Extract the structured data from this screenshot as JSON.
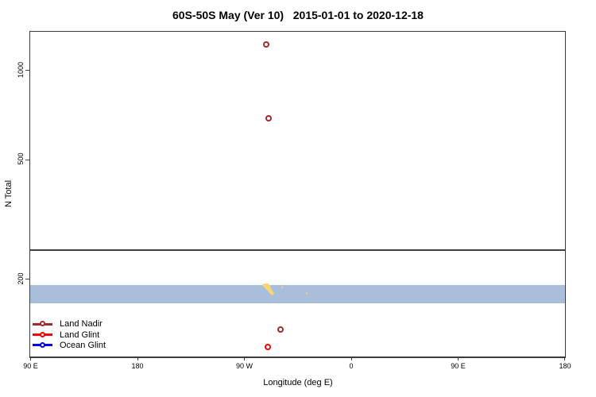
{
  "title": "60S-50S May (Ver 10)   2015-01-01 to 2020-12-18",
  "axes": {
    "y_label": "N Total",
    "x_label": "Longitude (deg E)",
    "y_tick_labels": [
      "1000",
      "500",
      "200"
    ],
    "x_tick_labels": [
      "90 E",
      "180",
      "90 W",
      "0",
      "90 E",
      "180"
    ]
  },
  "legend": {
    "items": [
      {
        "label": "Land Nadir",
        "color": "#a52a2a"
      },
      {
        "label": "Land Glint",
        "color": "#ff0000"
      },
      {
        "label": "Ocean Glint",
        "color": "#0000ff"
      }
    ]
  },
  "chart_data": {
    "type": "scatter",
    "title": "60S-50S May (Ver 10)  2015-01-01 to 2020-12-18",
    "xlabel": "Longitude (deg E)",
    "ylabel": "N Total",
    "y_scale": "log",
    "ylim": [
      110,
      1342
    ],
    "xlim_axis_deg": [
      90,
      540
    ],
    "x_tick_axis_deg": [
      90,
      180,
      270,
      360,
      450,
      540
    ],
    "x_tick_labels": [
      "90 E",
      "180",
      "90 W",
      "0",
      "90 E",
      "180"
    ],
    "y_ticks": [
      1000,
      500,
      200
    ],
    "grid": false,
    "legend_position": "bottom-left-inside",
    "series": [
      {
        "name": "Land Nadir",
        "color": "#a52a2a",
        "points": [
          {
            "lon_deg_e": -71,
            "n_total": 1210
          },
          {
            "lon_deg_e": -69,
            "n_total": 684
          },
          {
            "lon_deg_e": -59,
            "n_total": 135
          }
        ]
      },
      {
        "name": "Land Glint",
        "color": "#ff0000",
        "points": [
          {
            "lon_deg_e": -70,
            "n_total": 118
          }
        ]
      },
      {
        "name": "Ocean Glint",
        "color": "#0000ff",
        "points": []
      }
    ],
    "reference_line": {
      "n_total": 250,
      "color": "#404040"
    },
    "latitude_band_strip": {
      "n_from": 165,
      "n_to": 190,
      "ocean_color": "#a9bedb",
      "land_color": "#f6d573",
      "land_features": [
        {
          "name": "patagonia",
          "lon_from_deg_e": -74.5,
          "lon_to_deg_e": -64
        },
        {
          "name": "islands-east-of-patagonia",
          "lon_from_deg_e": -59,
          "lon_to_deg_e": -57
        },
        {
          "name": "south-georgia",
          "lon_from_deg_e": -38,
          "lon_to_deg_e": -36.5
        }
      ]
    }
  }
}
